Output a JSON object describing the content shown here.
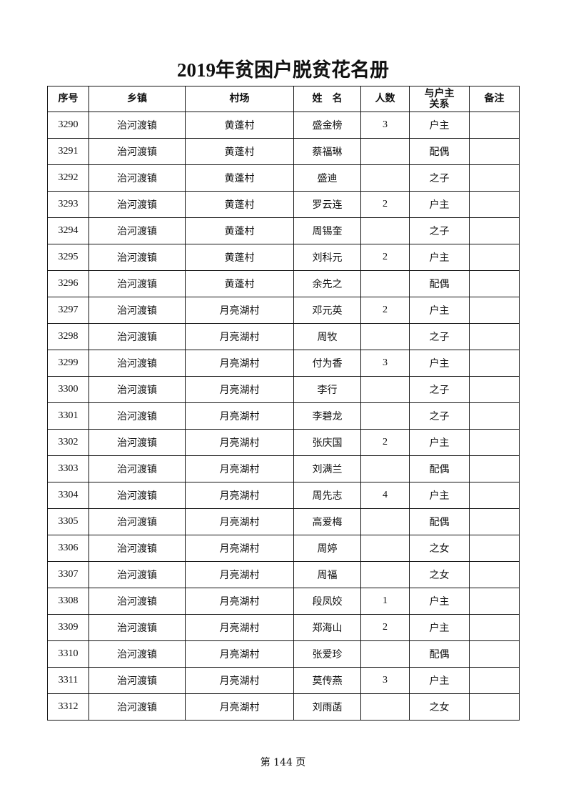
{
  "title": "2019年贫困户脱贫花名册",
  "headers": [
    "序号",
    "乡镇",
    "村场",
    "姓　名",
    "人数",
    "与户主关系",
    "备注"
  ],
  "rows": [
    [
      "3290",
      "治河渡镇",
      "黄蓬村",
      "盛金榜",
      "3",
      "户主",
      ""
    ],
    [
      "3291",
      "治河渡镇",
      "黄蓬村",
      "蔡福琳",
      "",
      "配偶",
      ""
    ],
    [
      "3292",
      "治河渡镇",
      "黄蓬村",
      "盛迪",
      "",
      "之子",
      ""
    ],
    [
      "3293",
      "治河渡镇",
      "黄蓬村",
      "罗云连",
      "2",
      "户主",
      ""
    ],
    [
      "3294",
      "治河渡镇",
      "黄蓬村",
      "周锡奎",
      "",
      "之子",
      ""
    ],
    [
      "3295",
      "治河渡镇",
      "黄蓬村",
      "刘科元",
      "2",
      "户主",
      ""
    ],
    [
      "3296",
      "治河渡镇",
      "黄蓬村",
      "余先之",
      "",
      "配偶",
      ""
    ],
    [
      "3297",
      "治河渡镇",
      "月亮湖村",
      "邓元英",
      "2",
      "户主",
      ""
    ],
    [
      "3298",
      "治河渡镇",
      "月亮湖村",
      "周牧",
      "",
      "之子",
      ""
    ],
    [
      "3299",
      "治河渡镇",
      "月亮湖村",
      "付为香",
      "3",
      "户主",
      ""
    ],
    [
      "3300",
      "治河渡镇",
      "月亮湖村",
      "李行",
      "",
      "之子",
      ""
    ],
    [
      "3301",
      "治河渡镇",
      "月亮湖村",
      "李碧龙",
      "",
      "之子",
      ""
    ],
    [
      "3302",
      "治河渡镇",
      "月亮湖村",
      "张庆国",
      "2",
      "户主",
      ""
    ],
    [
      "3303",
      "治河渡镇",
      "月亮湖村",
      "刘满兰",
      "",
      "配偶",
      ""
    ],
    [
      "3304",
      "治河渡镇",
      "月亮湖村",
      "周先志",
      "4",
      "户主",
      ""
    ],
    [
      "3305",
      "治河渡镇",
      "月亮湖村",
      "高爱梅",
      "",
      "配偶",
      ""
    ],
    [
      "3306",
      "治河渡镇",
      "月亮湖村",
      "周婷",
      "",
      "之女",
      ""
    ],
    [
      "3307",
      "治河渡镇",
      "月亮湖村",
      "周福",
      "",
      "之女",
      ""
    ],
    [
      "3308",
      "治河渡镇",
      "月亮湖村",
      "段凤姣",
      "1",
      "户主",
      ""
    ],
    [
      "3309",
      "治河渡镇",
      "月亮湖村",
      "郑海山",
      "2",
      "户主",
      ""
    ],
    [
      "3310",
      "治河渡镇",
      "月亮湖村",
      "张爱珍",
      "",
      "配偶",
      ""
    ],
    [
      "3311",
      "治河渡镇",
      "月亮湖村",
      "莫传燕",
      "3",
      "户主",
      ""
    ],
    [
      "3312",
      "治河渡镇",
      "月亮湖村",
      "刘雨菡",
      "",
      "之女",
      ""
    ]
  ],
  "footer": "第 144 页"
}
